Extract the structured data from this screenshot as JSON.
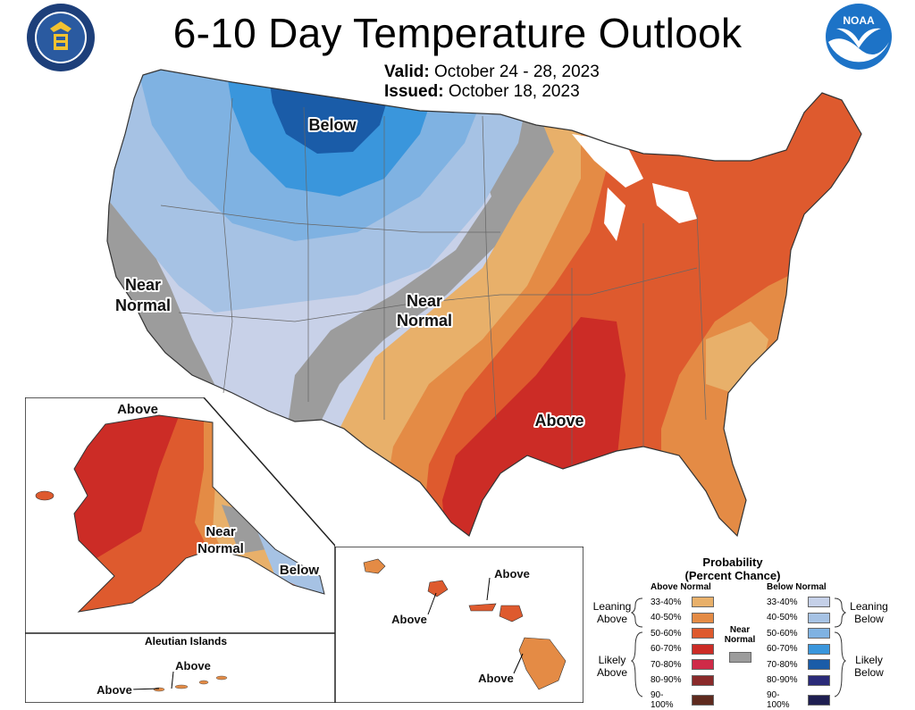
{
  "header": {
    "title": "6-10 Day Temperature Outlook",
    "valid_label": "Valid:",
    "valid_dates": "October 24 - 28, 2023",
    "issued_label": "Issued:",
    "issued_date": "October 18, 2023"
  },
  "logos": {
    "left": "doc-seal-icon",
    "right": "noaa-logo-icon"
  },
  "map": {
    "labels": {
      "below_north": "Below",
      "near_normal_west_1": "Near",
      "near_normal_west_2": "Normal",
      "near_normal_central_1": "Near",
      "near_normal_central_2": "Normal",
      "above_south": "Above"
    },
    "alaska": {
      "above": "Above",
      "near_1": "Near",
      "near_2": "Normal",
      "below": "Below"
    },
    "aleutian": {
      "title": "Aleutian Islands",
      "above_1": "Above",
      "above_2": "Above"
    },
    "hawaii": {
      "above_1": "Above",
      "above_2": "Above",
      "above_3": "Above"
    }
  },
  "legend": {
    "title_1": "Probability",
    "title_2": "(Percent Chance)",
    "above_header": "Above Normal",
    "below_header": "Below Normal",
    "near_normal_1": "Near",
    "near_normal_2": "Normal",
    "leaning_above_1": "Leaning",
    "leaning_above_2": "Above",
    "likely_above_1": "Likely",
    "likely_above_2": "Above",
    "leaning_below_1": "Leaning",
    "leaning_below_2": "Below",
    "likely_below_1": "Likely",
    "likely_below_2": "Below",
    "ranges": [
      "33-40%",
      "40-50%",
      "50-60%",
      "60-70%",
      "70-80%",
      "80-90%",
      "90-100%"
    ],
    "above_colors": [
      "#e8b06a",
      "#e48b45",
      "#de5a2e",
      "#cc2c26",
      "#cf2a48",
      "#8a2a2a",
      "#5e2a1e"
    ],
    "below_colors": [
      "#c5d0e8",
      "#a6c2e4",
      "#7fb2e2",
      "#3a96dc",
      "#1a5ca8",
      "#2a2a78",
      "#1e1e50"
    ],
    "near_color": "#9c9c9c"
  }
}
